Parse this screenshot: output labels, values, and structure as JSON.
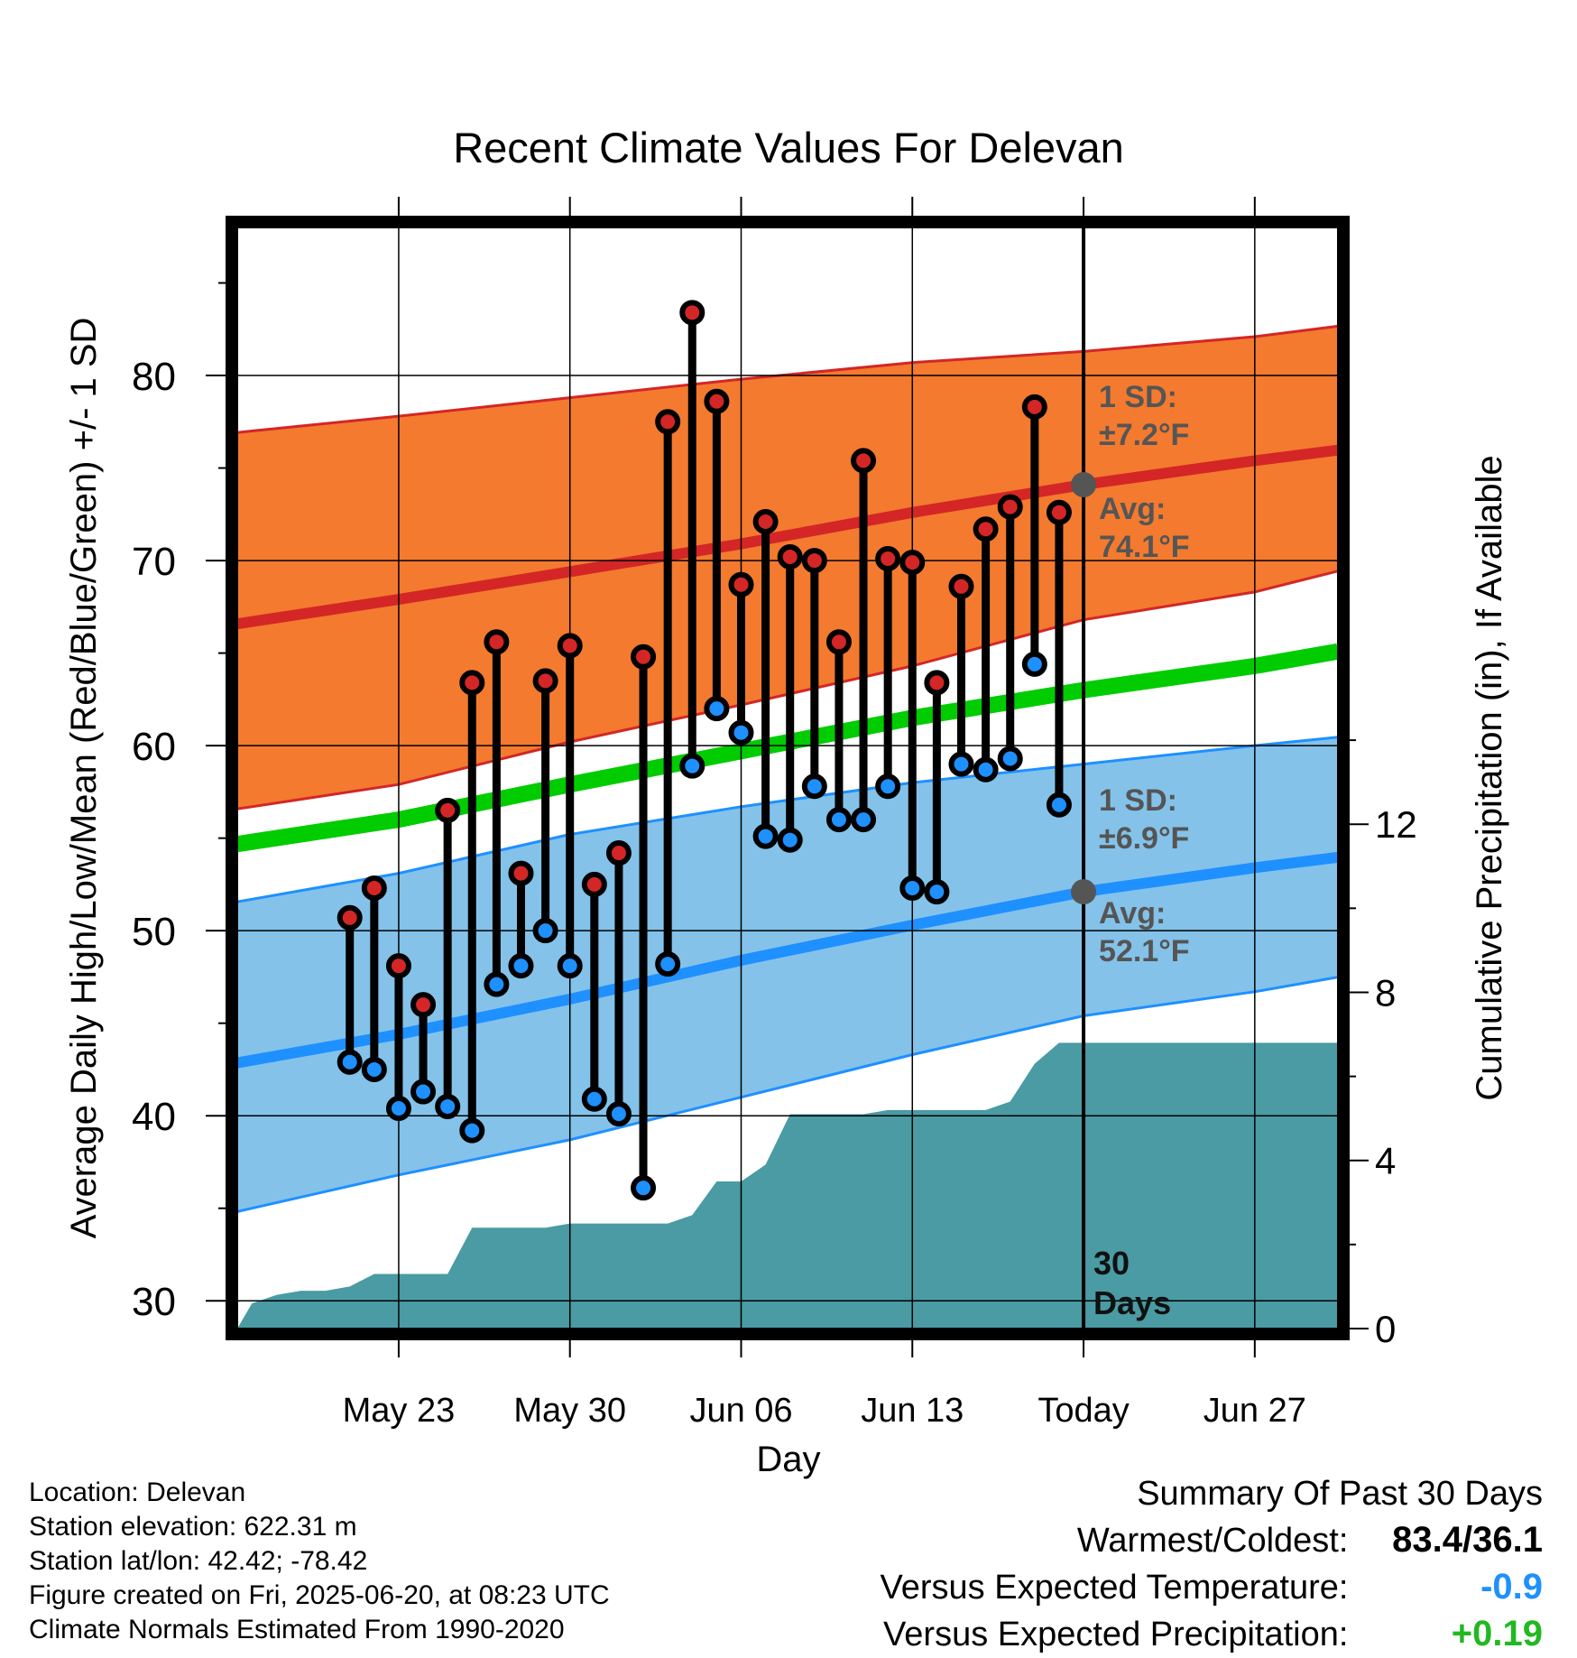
{
  "chart_data": {
    "type": "line",
    "title": "Recent Climate Values For Delevan",
    "xlabel": "Day",
    "ylabel": "Average Daily High/Low/Mean (Red/Blue/Green) +/- 1 SD",
    "y2label": "Cumulative Precipitation (in), If Available",
    "ylim": [
      28.5,
      88
    ],
    "y2lim": [
      0,
      26.2
    ],
    "xlim": [
      -34.6,
      10.4
    ],
    "x_unit": "days relative to Today (Jun 20)",
    "xticks": [
      {
        "x": -28,
        "label": "May 23"
      },
      {
        "x": -21,
        "label": "May 30"
      },
      {
        "x": -14,
        "label": "Jun 06"
      },
      {
        "x": -7,
        "label": "Jun 13"
      },
      {
        "x": 0,
        "label": "Today"
      },
      {
        "x": 7,
        "label": "Jun 27"
      }
    ],
    "yticks": [
      30,
      40,
      50,
      60,
      70,
      80
    ],
    "y2ticks": [
      0,
      4,
      8,
      12
    ],
    "grid": true,
    "normals_x": [
      -34,
      -28,
      -21,
      -14,
      -7,
      0,
      7,
      10
    ],
    "normal_high": [
      66.7,
      67.9,
      69.4,
      70.9,
      72.6,
      74.1,
      75.4,
      75.9
    ],
    "normal_high_upper": [
      77.0,
      77.8,
      78.8,
      79.8,
      80.7,
      81.3,
      82.1,
      82.6
    ],
    "normal_high_lower": [
      56.7,
      57.9,
      60.2,
      62.2,
      64.3,
      66.8,
      68.3,
      69.3
    ],
    "normal_low": [
      43.0,
      44.4,
      46.3,
      48.4,
      50.3,
      52.1,
      53.4,
      53.9
    ],
    "normal_low_upper": [
      51.7,
      53.1,
      55.2,
      56.7,
      58.0,
      59.0,
      60.0,
      60.4
    ],
    "normal_low_lower": [
      35.0,
      36.8,
      38.7,
      41.0,
      43.3,
      45.4,
      46.7,
      47.4
    ],
    "normal_mean": [
      54.8,
      56.0,
      57.9,
      59.7,
      61.5,
      63.0,
      64.3,
      65.0
    ],
    "daily": [
      {
        "x": -30,
        "high": 50.7,
        "low": 42.9
      },
      {
        "x": -29,
        "high": 52.3,
        "low": 42.5
      },
      {
        "x": -28,
        "high": 48.1,
        "low": 40.4
      },
      {
        "x": -27,
        "high": 46.0,
        "low": 41.3
      },
      {
        "x": -26,
        "high": 56.5,
        "low": 40.5
      },
      {
        "x": -25,
        "high": 63.4,
        "low": 39.2
      },
      {
        "x": -24,
        "high": 65.6,
        "low": 47.1
      },
      {
        "x": -23,
        "high": 53.1,
        "low": 48.1
      },
      {
        "x": -22,
        "high": 63.5,
        "low": 50.0
      },
      {
        "x": -21,
        "high": 65.4,
        "low": 48.1
      },
      {
        "x": -20,
        "high": 52.5,
        "low": 40.9
      },
      {
        "x": -19,
        "high": 54.2,
        "low": 40.1
      },
      {
        "x": -18,
        "high": 64.8,
        "low": 36.1
      },
      {
        "x": -17,
        "high": 77.5,
        "low": 48.2
      },
      {
        "x": -16,
        "high": 83.4,
        "low": 58.9
      },
      {
        "x": -15,
        "high": 78.6,
        "low": 62.0
      },
      {
        "x": -14,
        "high": 68.7,
        "low": 60.7
      },
      {
        "x": -13,
        "high": 72.1,
        "low": 55.1
      },
      {
        "x": -12,
        "high": 70.2,
        "low": 54.9
      },
      {
        "x": -11,
        "high": 70.0,
        "low": 57.8
      },
      {
        "x": -10,
        "high": 65.6,
        "low": 56.0
      },
      {
        "x": -9,
        "high": 75.4,
        "low": 56.0
      },
      {
        "x": -8,
        "high": 70.1,
        "low": 57.8
      },
      {
        "x": -7,
        "high": 69.9,
        "low": 52.3
      },
      {
        "x": -6,
        "high": 63.4,
        "low": 52.1
      },
      {
        "x": -5,
        "high": 68.6,
        "low": 59.0
      },
      {
        "x": -4,
        "high": 71.7,
        "low": 58.7
      },
      {
        "x": -3,
        "high": 72.9,
        "low": 59.3
      },
      {
        "x": -2,
        "high": 78.3,
        "low": 64.4
      },
      {
        "x": -1,
        "high": 72.6,
        "low": 56.8
      }
    ],
    "precip_x": [
      -34.6,
      -34,
      -33,
      -32,
      -31,
      -30,
      -29,
      -28,
      -27,
      -26,
      -25,
      -24,
      -23,
      -22,
      -21,
      -20,
      -19,
      -18,
      -17,
      -16,
      -15,
      -14,
      -13,
      -12,
      -11,
      -10,
      -9,
      -8,
      -7,
      -6,
      -5,
      -4,
      -3,
      -2,
      -1,
      0,
      1,
      10.4
    ],
    "precip_y": [
      0.0,
      0.6,
      0.8,
      0.9,
      0.9,
      1.0,
      1.3,
      1.3,
      1.3,
      1.3,
      2.4,
      2.4,
      2.4,
      2.4,
      2.5,
      2.5,
      2.5,
      2.5,
      2.5,
      2.7,
      3.5,
      3.5,
      3.9,
      5.1,
      5.1,
      5.1,
      5.1,
      5.2,
      5.2,
      5.2,
      5.2,
      5.2,
      5.4,
      6.3,
      6.8,
      6.8,
      6.8,
      6.8
    ],
    "colors": {
      "high": "#d42626",
      "high_band": "#f37a2f",
      "low": "#1e90ff",
      "low_band": "#84c2e9",
      "mean": "#00cc00",
      "precip": "#4a9ba3",
      "annotation": "#555555"
    },
    "annotations": {
      "high_sd_line1": "1 SD:",
      "high_sd_line2": "±7.2°F",
      "high_avg_line1": "Avg:",
      "high_avg_line2": "74.1°F",
      "low_sd_line1": "1 SD:",
      "low_sd_line2": "±6.9°F",
      "low_avg_line1": "Avg:",
      "low_avg_line2": "52.1°F",
      "days_line1": "30",
      "days_line2": "Days"
    }
  },
  "info": {
    "location": "Location: Delevan",
    "elevation": "Station elevation: 622.31 m",
    "latlon": "Station lat/lon: 42.42; -78.42",
    "created": "Figure created on Fri, 2025-06-20, at 08:23 UTC",
    "normals": "Climate Normals Estimated From 1990-2020"
  },
  "summary": {
    "title": "Summary Of Past 30 Days",
    "warmest_label": "Warmest/Coldest:",
    "warmest_value": "83.4/36.1",
    "temp_label": "Versus Expected Temperature:",
    "temp_value": "-0.9",
    "temp_color": "#1e90ff",
    "precip_label": "Versus Expected Precipitation:",
    "precip_value": "+0.19",
    "precip_color": "#22b822"
  }
}
